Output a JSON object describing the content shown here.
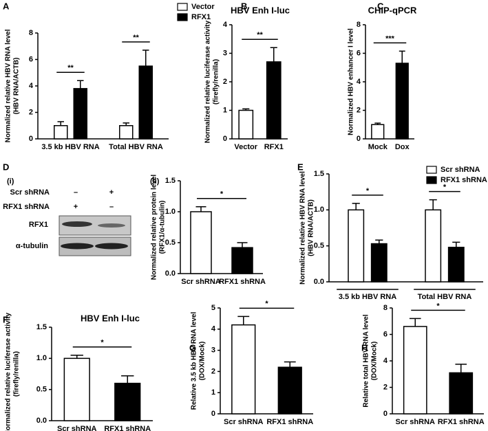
{
  "chart_data": [
    {
      "type": "bar",
      "panel": "A",
      "ylabel": [
        "Normalized relative HBV RNA level",
        "(HBV RNA/ACTB)"
      ],
      "categories": [
        "3.5 kb HBV RNA",
        "Total HBV RNA"
      ],
      "series": [
        {
          "name": "Vector",
          "color": "#ffffff",
          "values": [
            1,
            1
          ],
          "errors": [
            0.3,
            0.2
          ]
        },
        {
          "name": "RFX1",
          "color": "#000000",
          "values": [
            3.8,
            5.5
          ],
          "errors": [
            0.6,
            1.2
          ]
        }
      ],
      "ylim": [
        0,
        8
      ],
      "yticks": [
        0,
        2,
        4,
        6,
        8
      ],
      "legend": "upper right",
      "significance": [
        "**",
        "**"
      ]
    },
    {
      "type": "bar",
      "panel": "B",
      "title": "HBV Enh I-luc",
      "ylabel": [
        "Normalized relative luciferase activity",
        "(firefly/renilla)"
      ],
      "categories": [
        "Vector",
        "RFX1"
      ],
      "values": [
        1,
        2.7
      ],
      "errors": [
        0.05,
        0.5
      ],
      "colors": [
        "#ffffff",
        "#000000"
      ],
      "ylim": [
        0,
        4
      ],
      "yticks": [
        0,
        1,
        2,
        3,
        4
      ],
      "significance": "**"
    },
    {
      "type": "bar",
      "panel": "C",
      "title": "CHIP-qPCR",
      "ylabel": [
        "Normalized HBV enhancer I level"
      ],
      "categories": [
        "Mock",
        "Dox"
      ],
      "values": [
        1,
        5.3
      ],
      "errors": [
        0.1,
        0.85
      ],
      "colors": [
        "#ffffff",
        "#000000"
      ],
      "ylim": [
        0,
        8
      ],
      "yticks": [
        0,
        2,
        4,
        6,
        8
      ],
      "significance": "***"
    },
    {
      "type": "bar",
      "panel": "(ii)",
      "ylabel": [
        "Normalized relative protein level",
        "(RFX1/α-tubulin)"
      ],
      "categories": [
        "Scr shRNA",
        "RFX1 shRNA"
      ],
      "values": [
        1.0,
        0.42
      ],
      "errors": [
        0.08,
        0.08
      ],
      "colors": [
        "#ffffff",
        "#000000"
      ],
      "ylim": [
        0,
        1.5
      ],
      "yticks": [
        {
          "value": 0,
          "label": "0.0"
        },
        0.5,
        {
          "value": 1,
          "label": "1.0"
        },
        1.5
      ],
      "significance": "*"
    },
    {
      "type": "bar",
      "panel": "E",
      "ylabel": [
        "Normalized relative HBV RNA level",
        "(HBV RNA/ACTB)"
      ],
      "categories": [
        "3.5 kb HBV RNA",
        "Total HBV RNA"
      ],
      "series": [
        {
          "name": "Scr shRNA",
          "color": "#ffffff",
          "values": [
            1.0,
            1.0
          ],
          "errors": [
            0.09,
            0.14
          ]
        },
        {
          "name": "RFX1 shRNA",
          "color": "#000000",
          "values": [
            0.53,
            0.48
          ],
          "errors": [
            0.05,
            0.07
          ]
        }
      ],
      "ylim": [
        0,
        1.5
      ],
      "yticks": [
        {
          "value": 0,
          "label": "0.0"
        },
        0.5,
        {
          "value": 1,
          "label": "1.0"
        },
        1.5
      ],
      "legend": "upper right",
      "significance": [
        "*",
        "*"
      ]
    },
    {
      "type": "bar",
      "panel": "F",
      "title": "HBV Enh I-luc",
      "ylabel": [
        "Normalized relative luciferase activity",
        "(firefly/renilla)"
      ],
      "categories": [
        "Scr shRNA",
        "RFX1 shRNA"
      ],
      "values": [
        1.0,
        0.6
      ],
      "errors": [
        0.05,
        0.12
      ],
      "colors": [
        "#ffffff",
        "#000000"
      ],
      "ylim": [
        0,
        1.5
      ],
      "yticks": [
        {
          "value": 0,
          "label": "0.0"
        },
        0.5,
        {
          "value": 1,
          "label": "1.0"
        },
        1.5
      ],
      "significance": "*"
    },
    {
      "type": "bar",
      "panel": "G",
      "ylabel": [
        "Relative 3.5 kb HBV RNA level",
        "(DOX/Mock)"
      ],
      "categories": [
        "Scr shRNA",
        "RFX1 shRNA"
      ],
      "values": [
        4.2,
        2.2
      ],
      "errors": [
        0.4,
        0.25
      ],
      "colors": [
        "#ffffff",
        "#000000"
      ],
      "ylim": [
        0,
        5
      ],
      "yticks": [
        0,
        1,
        2,
        3,
        4,
        5
      ],
      "significance": "*"
    },
    {
      "type": "bar",
      "panel": "H",
      "ylabel": [
        "Relative total HBV RNA level",
        "(DOX/Mock)"
      ],
      "categories": [
        "Scr shRNA",
        "RFX1 shRNA"
      ],
      "values": [
        6.6,
        3.1
      ],
      "errors": [
        0.6,
        0.65
      ],
      "colors": [
        "#ffffff",
        "#000000"
      ],
      "ylim": [
        0,
        8
      ],
      "yticks": [
        0,
        2,
        4,
        6,
        8
      ],
      "significance": "*"
    }
  ],
  "blot": {
    "panel": "D",
    "subpanel": "(i)",
    "rows": [
      {
        "label": "Scr shRNA",
        "signs": [
          "–",
          "+"
        ]
      },
      {
        "label": "RFX1 shRNA",
        "signs": [
          "+",
          "–"
        ]
      }
    ],
    "bands": [
      "RFX1",
      "α-tubulin"
    ]
  }
}
